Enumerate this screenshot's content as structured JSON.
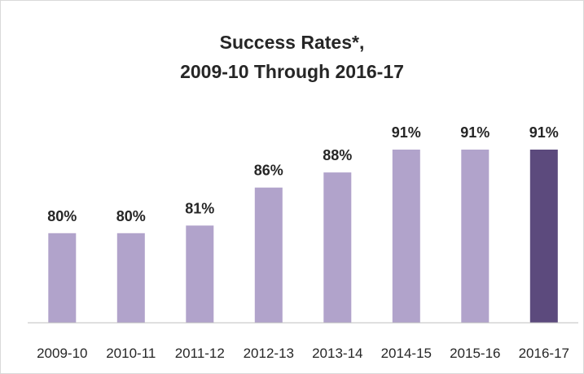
{
  "chart_data": {
    "type": "bar",
    "title_lines": [
      "Success Rates*,",
      "2009-10 Through 2016-17"
    ],
    "categories": [
      "2009-10",
      "2010-11",
      "2011-12",
      "2012-13",
      "2013-14",
      "2014-15",
      "2015-16",
      "2016-17"
    ],
    "values": [
      80,
      80,
      81,
      86,
      88,
      91,
      91,
      91
    ],
    "data_labels": [
      "80%",
      "80%",
      "81%",
      "86%",
      "88%",
      "91%",
      "91%",
      "91%"
    ],
    "unit": "%",
    "xlabel": "",
    "ylabel": "",
    "grid": false,
    "legend": "none",
    "colors": {
      "bar": "#b1a3cb",
      "highlight_bar": "#5c4a7d",
      "axis": "#bfbfbf",
      "text": "#262626"
    },
    "highlight_index": 7
  }
}
